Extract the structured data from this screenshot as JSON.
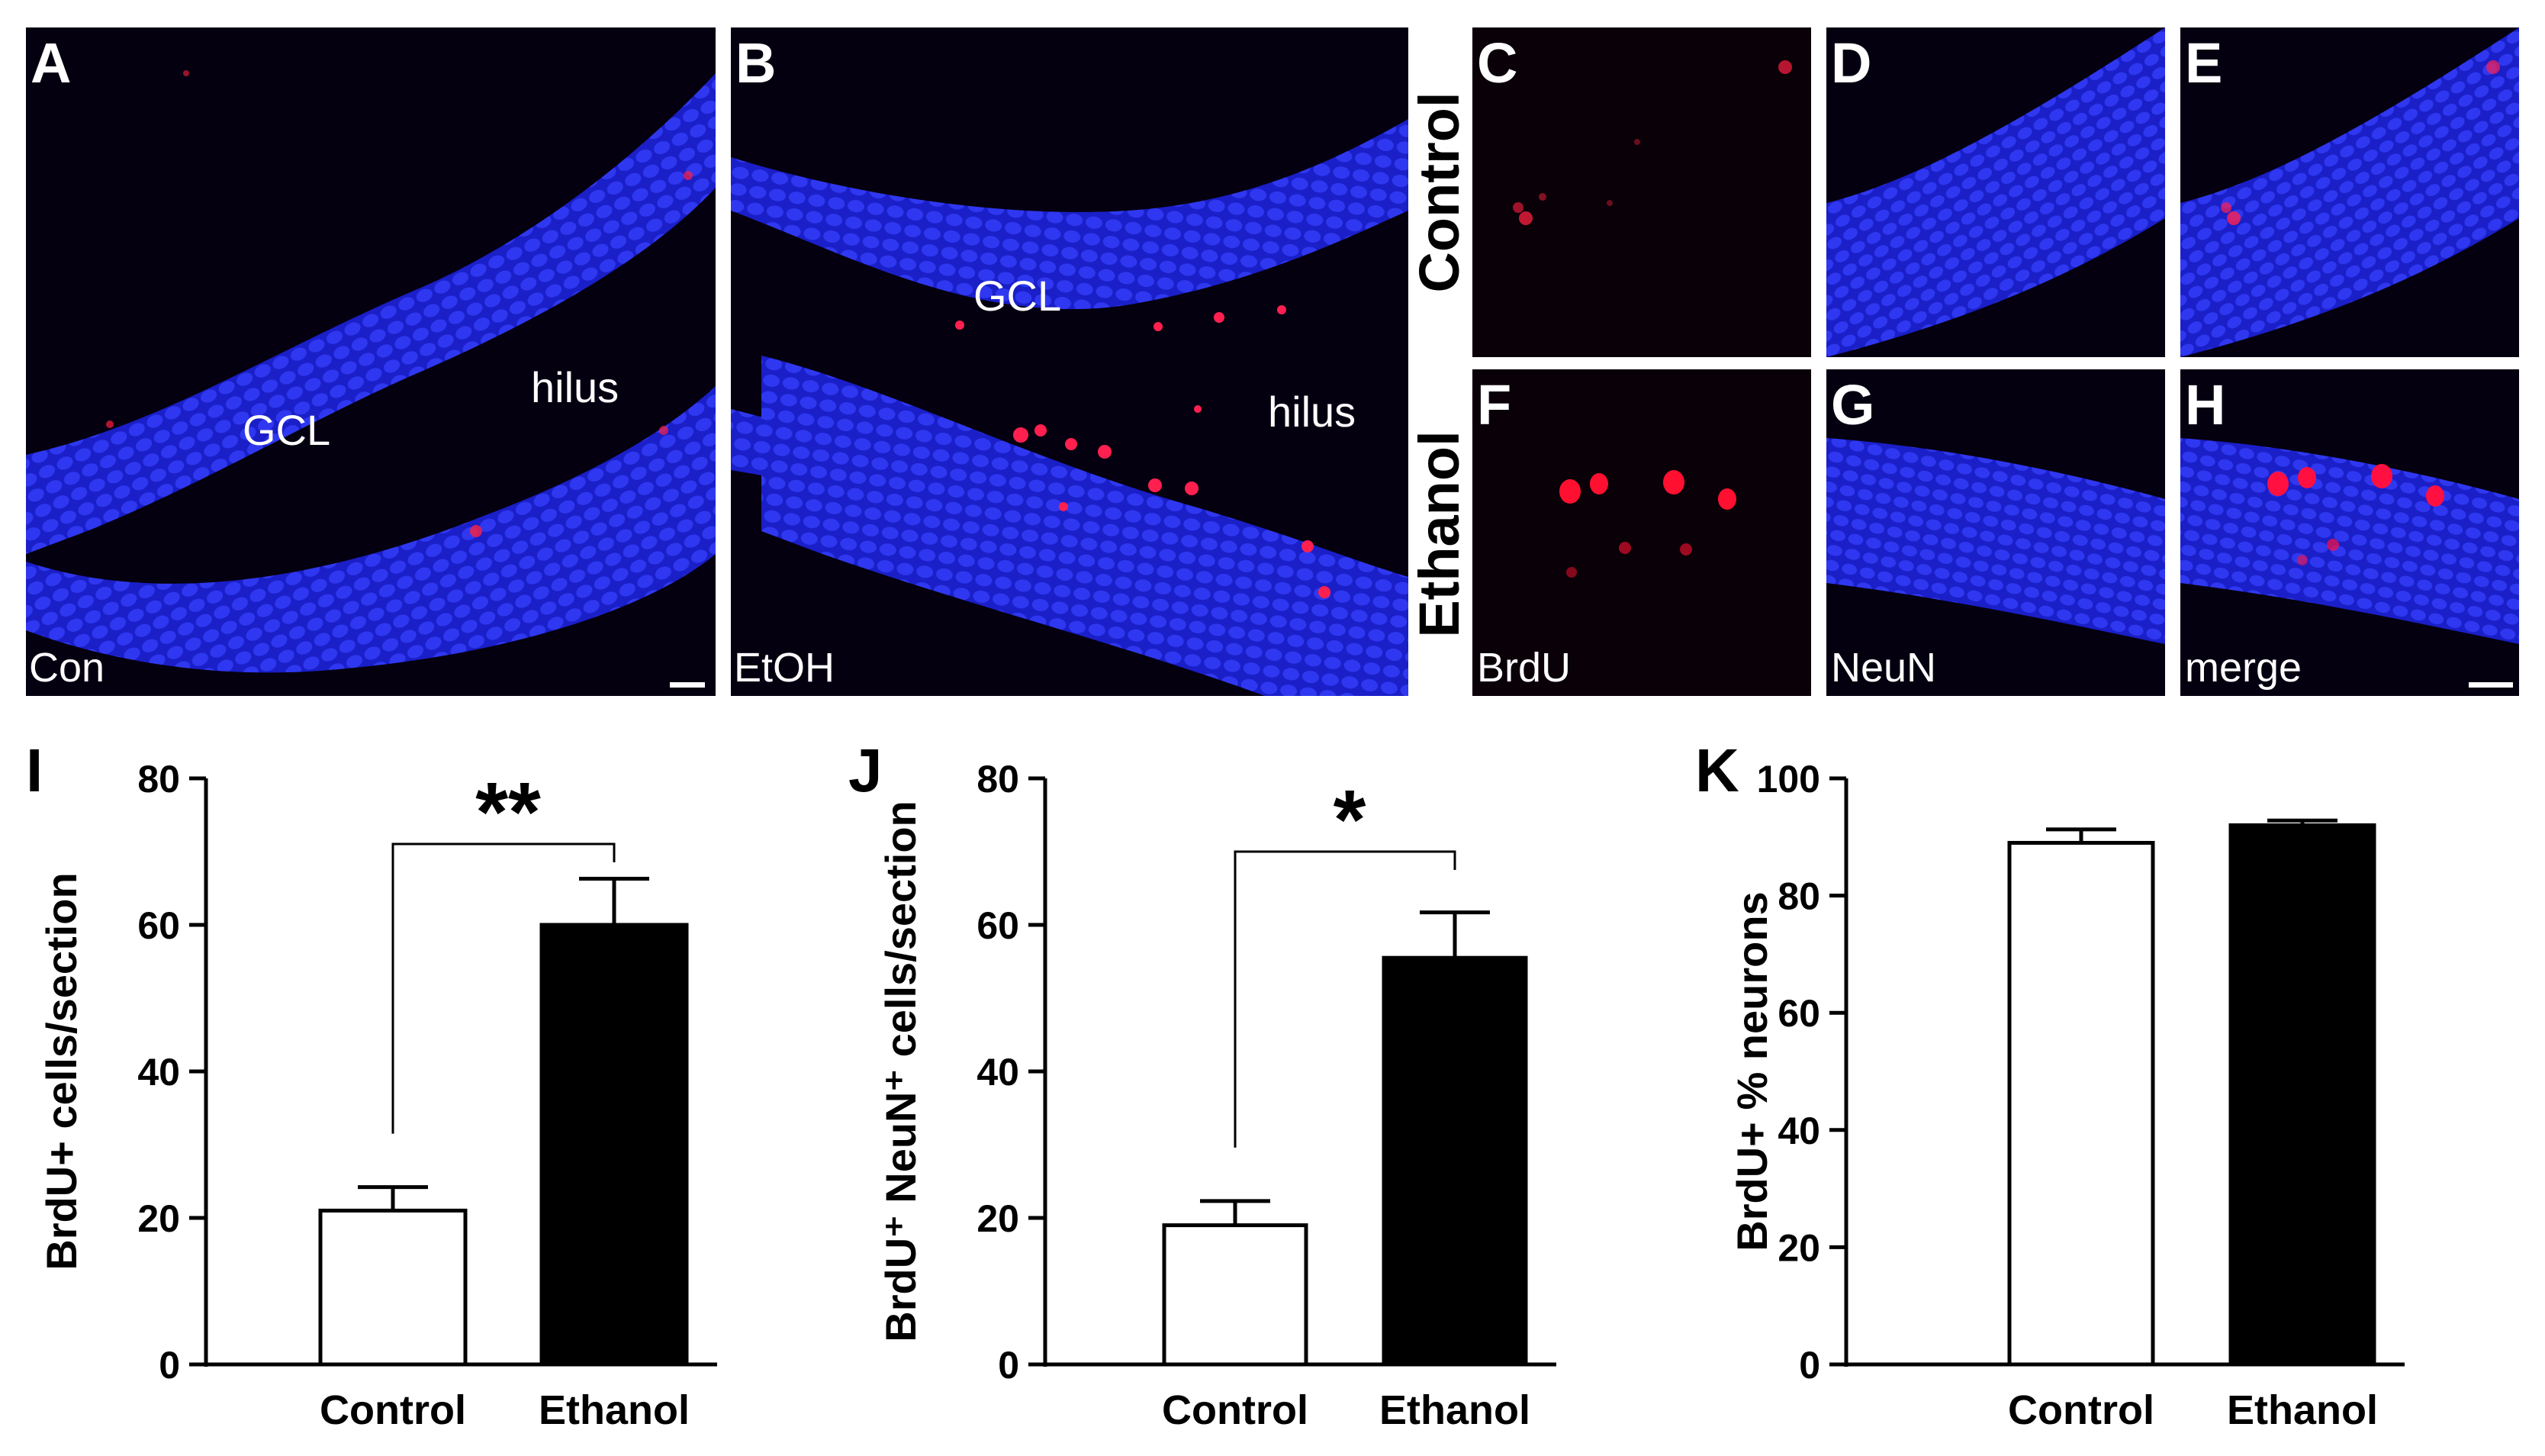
{
  "micrographs": {
    "A": {
      "letter": "A",
      "corner_label": "Con",
      "annotations": [
        "GCL",
        "hilus"
      ]
    },
    "B": {
      "letter": "B",
      "corner_label": "EtOH",
      "annotations": [
        "GCL",
        "hilus"
      ]
    },
    "C": {
      "letter": "C",
      "corner_label": ""
    },
    "D": {
      "letter": "D",
      "corner_label": ""
    },
    "E": {
      "letter": "E",
      "corner_label": ""
    },
    "F": {
      "letter": "F",
      "corner_label": "BrdU"
    },
    "G": {
      "letter": "G",
      "corner_label": "NeuN"
    },
    "H": {
      "letter": "H",
      "corner_label": "merge"
    },
    "row_labels": [
      "Control",
      "Ethanol"
    ]
  },
  "colors": {
    "nuclei": "#1d22d6",
    "brdu": "#ff2040",
    "background": "#050010"
  },
  "chart_data": [
    {
      "panel": "I",
      "type": "bar",
      "categories": [
        "Control",
        "Ethanol"
      ],
      "values": [
        21,
        60
      ],
      "errors": [
        3.2,
        6.3
      ],
      "bar_colors": [
        "#ffffff",
        "#000000"
      ],
      "ylabel": "BrdU+ cells/section",
      "ylim": [
        0,
        80
      ],
      "yticks": [
        0,
        20,
        40,
        60,
        80
      ],
      "significance": "**"
    },
    {
      "panel": "J",
      "type": "bar",
      "categories": [
        "Control",
        "Ethanol"
      ],
      "values": [
        19,
        55.5
      ],
      "errors": [
        3.3,
        6.2
      ],
      "bar_colors": [
        "#ffffff",
        "#000000"
      ],
      "ylabel": "BrdU⁺ NeuN⁺ cells/section",
      "ylim": [
        0,
        80
      ],
      "yticks": [
        0,
        20,
        40,
        60,
        80
      ],
      "significance": "*"
    },
    {
      "panel": "K",
      "type": "bar",
      "categories": [
        "Control",
        "Ethanol"
      ],
      "values": [
        89,
        92
      ],
      "errors": [
        2.3,
        0.8
      ],
      "bar_colors": [
        "#ffffff",
        "#000000"
      ],
      "ylabel": "BrdU+ % neurons",
      "ylim": [
        0,
        100
      ],
      "yticks": [
        0,
        20,
        40,
        60,
        80,
        100
      ],
      "significance": ""
    }
  ]
}
